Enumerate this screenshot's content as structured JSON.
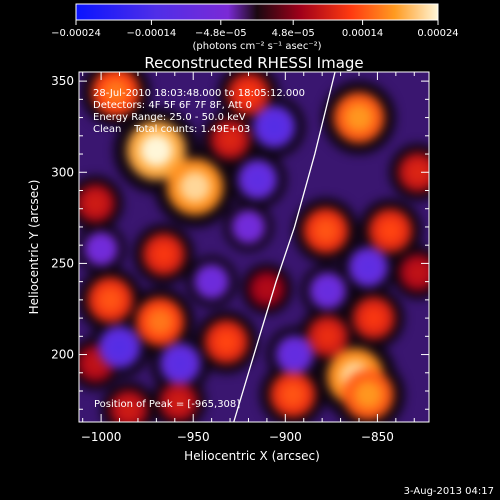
{
  "chart_data": {
    "type": "heatmap",
    "title": "Reconstructed RHESSI Image",
    "xlabel": "Heliocentric X (arcsec)",
    "ylabel": "Heliocentric Y (arcsec)",
    "xlim": [
      -1012,
      -822
    ],
    "ylim": [
      163,
      355
    ],
    "x_ticks": [
      -1000,
      -950,
      -900,
      -850
    ],
    "y_ticks": [
      200,
      250,
      300,
      350
    ],
    "x_tick_labels": [
      "−1000",
      "−950",
      "−900",
      "−850"
    ],
    "y_tick_labels": [
      "200",
      "250",
      "300",
      "350"
    ],
    "colorbar": {
      "range": [
        -0.00024,
        0.00024
      ],
      "ticks": [
        -0.00024,
        -0.00014,
        -4.8e-05,
        4.8e-05,
        0.00014,
        0.00024
      ],
      "tick_labels": [
        "−0.00024",
        "−0.00014",
        "−4.8e−05",
        "4.8e−05",
        "0.00014",
        "0.00024"
      ],
      "unit_label": "(photons cm⁻² s⁻¹ asec⁻²)"
    },
    "annotations": [
      "28-Jul-2010 18:03:48.000 to 18:05:12.000",
      "Detectors: 4F 5F 6F 7F 8F, Att 0",
      "Energy Range: 25.0 - 50.0 keV",
      "Clean    Total counts: 1.49E+03",
      "Position of Peak = [-965,308]"
    ],
    "limb_curve": [
      [
        -928,
        163
      ],
      [
        -917,
        200
      ],
      [
        -905,
        240
      ],
      [
        -895,
        270
      ],
      [
        -884,
        310
      ],
      [
        -873,
        355
      ]
    ],
    "blobs": [
      {
        "x": -970,
        "y": 312,
        "v": 0.00024
      },
      {
        "x": -949,
        "y": 292,
        "v": 0.00022
      },
      {
        "x": -862,
        "y": 188,
        "v": 0.00022
      },
      {
        "x": -855,
        "y": 178,
        "v": 0.00018
      },
      {
        "x": -992,
        "y": 344,
        "v": 0.00016
      },
      {
        "x": -966,
        "y": 255,
        "v": 0.00012
      },
      {
        "x": -995,
        "y": 230,
        "v": 0.00014
      },
      {
        "x": -968,
        "y": 218,
        "v": 0.00016
      },
      {
        "x": -932,
        "y": 207,
        "v": 0.00013
      },
      {
        "x": -896,
        "y": 178,
        "v": 0.00014
      },
      {
        "x": -860,
        "y": 330,
        "v": 0.00018
      },
      {
        "x": -878,
        "y": 268,
        "v": 0.00014
      },
      {
        "x": -843,
        "y": 268,
        "v": 0.00013
      },
      {
        "x": -877,
        "y": 210,
        "v": 0.00011
      },
      {
        "x": -852,
        "y": 220,
        "v": 0.00012
      },
      {
        "x": -920,
        "y": 343,
        "v": 0.00012
      },
      {
        "x": -930,
        "y": 318,
        "v": 0.0001
      },
      {
        "x": -1003,
        "y": 283,
        "v": 9e-05
      },
      {
        "x": -828,
        "y": 300,
        "v": 0.0001
      },
      {
        "x": -828,
        "y": 245,
        "v": 8e-05
      },
      {
        "x": -1003,
        "y": 195,
        "v": 8e-05
      },
      {
        "x": -985,
        "y": 170,
        "v": 9e-05
      },
      {
        "x": -910,
        "y": 236,
        "v": 7e-05
      },
      {
        "x": -958,
        "y": 174,
        "v": 9e-05
      },
      {
        "x": -906,
        "y": 325,
        "v": -0.00012
      },
      {
        "x": -915,
        "y": 296,
        "v": -0.0001
      },
      {
        "x": -990,
        "y": 204,
        "v": -0.00012
      },
      {
        "x": -957,
        "y": 195,
        "v": -0.00011
      },
      {
        "x": -940,
        "y": 240,
        "v": -7e-05
      },
      {
        "x": -877,
        "y": 235,
        "v": -8e-05
      },
      {
        "x": -855,
        "y": 248,
        "v": -0.0001
      },
      {
        "x": -895,
        "y": 200,
        "v": -9e-05
      },
      {
        "x": -1000,
        "y": 258,
        "v": -6e-05
      },
      {
        "x": -920,
        "y": 270,
        "v": -6e-05
      }
    ]
  },
  "footer": {
    "timestamp": "3-Aug-2013 04:17"
  }
}
